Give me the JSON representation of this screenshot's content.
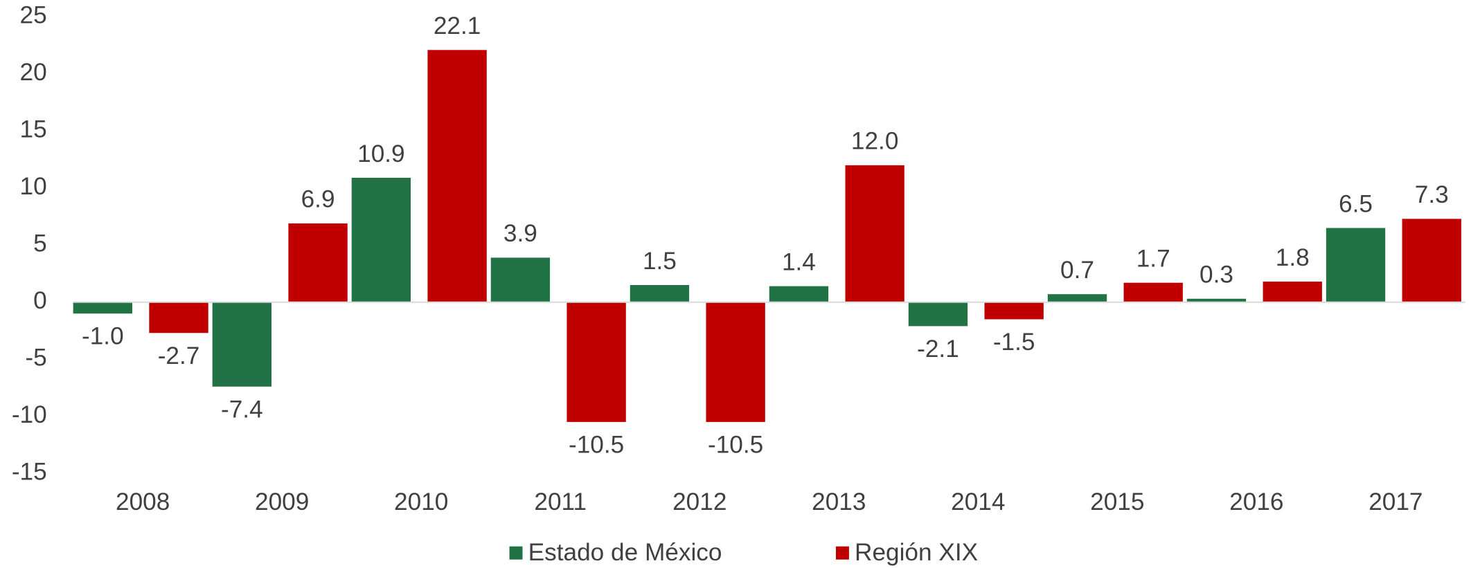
{
  "chart_data": {
    "type": "bar",
    "categories": [
      "2008",
      "2009",
      "2010",
      "2011",
      "2012",
      "2013",
      "2014",
      "2015",
      "2016",
      "2017"
    ],
    "series": [
      {
        "name": "Estado de México",
        "color": "#217346",
        "values": [
          -1.0,
          -7.4,
          10.9,
          3.9,
          1.5,
          1.4,
          -2.1,
          0.7,
          0.3,
          6.5
        ],
        "value_labels": [
          "-1.0",
          "-7.4",
          "10.9",
          "3.9",
          "1.5",
          "1.4",
          "-2.1",
          "0.7",
          "0.3",
          "6.5"
        ]
      },
      {
        "name": "Región XIX",
        "color": "#c00000",
        "values": [
          -2.7,
          6.9,
          22.1,
          -10.5,
          -10.5,
          12.0,
          -1.5,
          1.7,
          1.8,
          7.3
        ],
        "value_labels": [
          "-2.7",
          "6.9",
          "22.1",
          "-10.5",
          "-10.5",
          "12.0",
          "-1.5",
          "1.7",
          "1.8",
          "7.3"
        ]
      }
    ],
    "ylim": [
      -15,
      25
    ],
    "yticks": [
      -15,
      -10,
      -5,
      0,
      5,
      10,
      15,
      20,
      25
    ],
    "grid": false,
    "legend": "bottom"
  }
}
